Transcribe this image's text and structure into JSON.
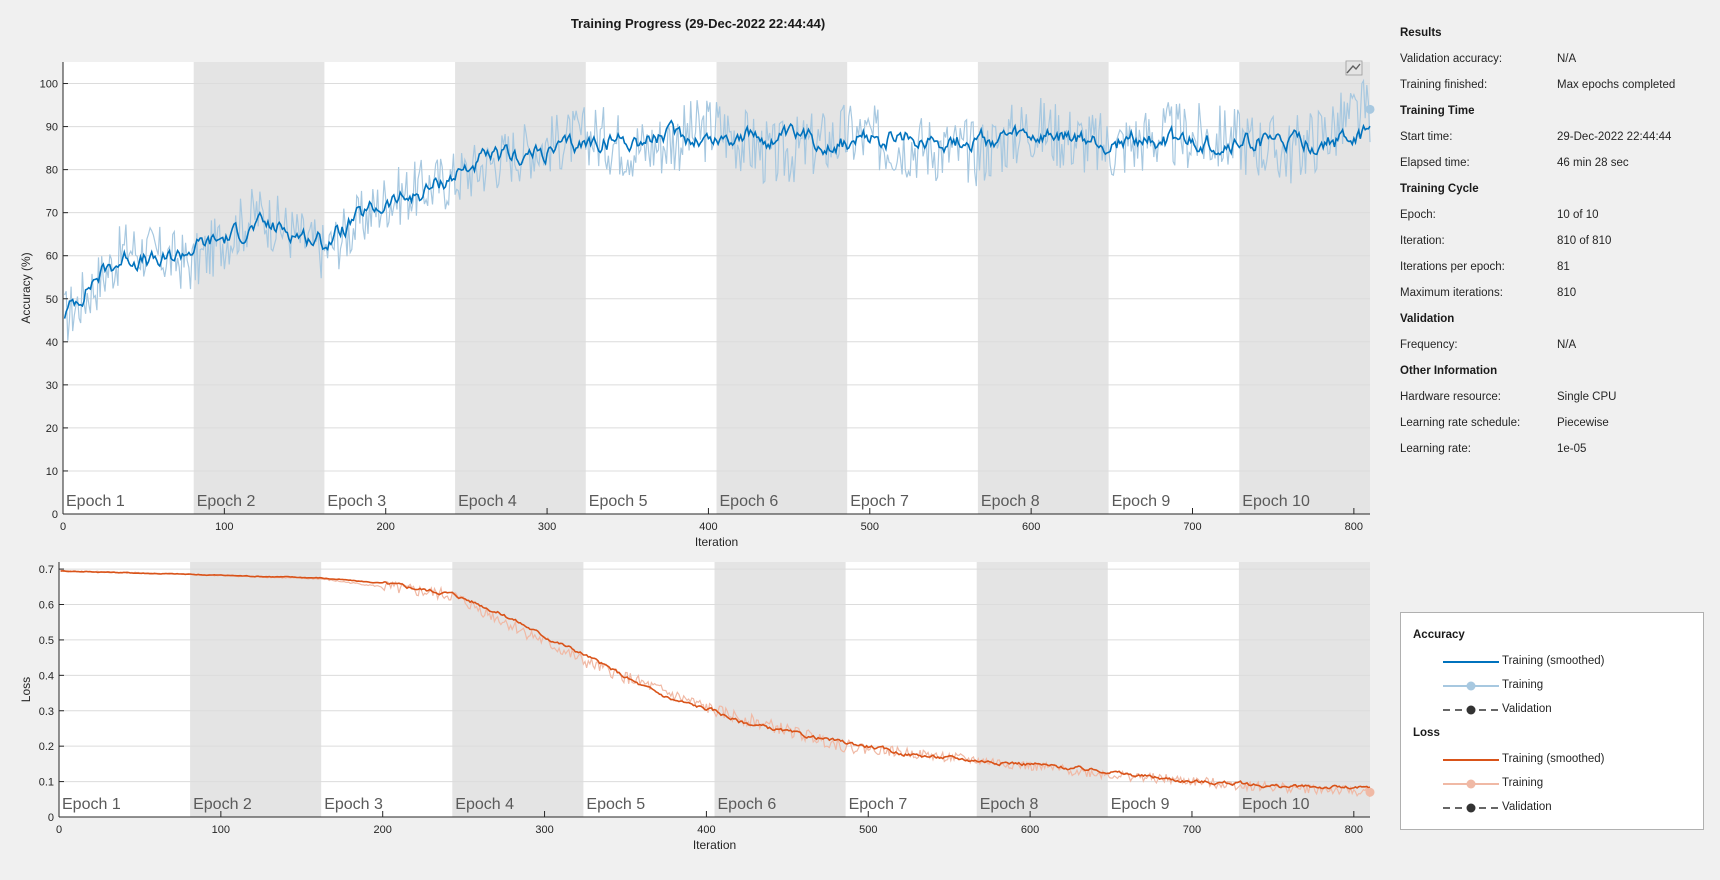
{
  "window": {
    "title": "Training Progress (29-Dec-2022 22:44:44)"
  },
  "colors": {
    "accuracy_smoothed": "#0072bd",
    "accuracy_raw": "#a7c8e0",
    "loss_smoothed": "#d95319",
    "loss_raw": "#f0b9a5",
    "epoch_band": "#e4e4e4",
    "plot_bg": "#ffffff",
    "validation": "#333333"
  },
  "epochs": [
    "Epoch 1",
    "Epoch 2",
    "Epoch 3",
    "Epoch 4",
    "Epoch 5",
    "Epoch 6",
    "Epoch 7",
    "Epoch 8",
    "Epoch 9",
    "Epoch 10"
  ],
  "icons": {
    "export": "export-plot-icon"
  },
  "info_panel": {
    "sections": [
      {
        "heading": "Results",
        "rows": [
          {
            "key": "Validation accuracy:",
            "value": "N/A"
          },
          {
            "key": "Training finished:",
            "value": "Max epochs completed"
          }
        ]
      },
      {
        "heading": "Training Time",
        "rows": [
          {
            "key": "Start time:",
            "value": "29-Dec-2022 22:44:44"
          },
          {
            "key": "Elapsed time:",
            "value": "46 min 28 sec"
          }
        ]
      },
      {
        "heading": "Training Cycle",
        "rows": [
          {
            "key": "Epoch:",
            "value": "10 of 10"
          },
          {
            "key": "Iteration:",
            "value": "810 of 810"
          },
          {
            "key": "Iterations per epoch:",
            "value": "81"
          },
          {
            "key": "Maximum iterations:",
            "value": "810"
          }
        ]
      },
      {
        "heading": "Validation",
        "rows": [
          {
            "key": "Frequency:",
            "value": "N/A"
          }
        ]
      },
      {
        "heading": "Other Information",
        "rows": [
          {
            "key": "Hardware resource:",
            "value": "Single CPU"
          },
          {
            "key": "Learning rate schedule:",
            "value": "Piecewise"
          },
          {
            "key": "Learning rate:",
            "value": "1e-05"
          }
        ]
      }
    ]
  },
  "legend": {
    "accuracy_heading": "Accuracy",
    "loss_heading": "Loss",
    "smoothed": "Training (smoothed)",
    "training": "Training",
    "validation": "Validation"
  },
  "chart_data": [
    {
      "type": "line",
      "xlabel": "Iteration",
      "ylabel": "Accuracy (%)",
      "xlim": [
        0,
        810
      ],
      "ylim": [
        0,
        105
      ],
      "xticks": [
        0,
        100,
        200,
        300,
        400,
        500,
        600,
        700,
        800
      ],
      "yticks": [
        0,
        10,
        20,
        30,
        40,
        50,
        60,
        70,
        80,
        90,
        100
      ],
      "grid": true,
      "series": [
        {
          "name": "Training (smoothed)",
          "x": [
            0,
            20,
            40,
            60,
            81,
            100,
            120,
            140,
            162,
            180,
            200,
            220,
            243,
            260,
            280,
            300,
            324,
            340,
            360,
            380,
            405,
            420,
            440,
            460,
            486,
            500,
            520,
            540,
            567,
            580,
            600,
            620,
            648,
            660,
            680,
            700,
            729,
            740,
            760,
            780,
            810
          ],
          "y": [
            46,
            55,
            60,
            58,
            62,
            64,
            67,
            66,
            63,
            68,
            72,
            74,
            79,
            82,
            83,
            84,
            86,
            87,
            87,
            88,
            87,
            88,
            87,
            87,
            86,
            87,
            87,
            87,
            87,
            87,
            87,
            87,
            86,
            87,
            87,
            86,
            86,
            87,
            86,
            86,
            88
          ]
        },
        {
          "name": "Training",
          "x": [
            0,
            40,
            81,
            120,
            162,
            200,
            243,
            280,
            324,
            360,
            405,
            440,
            486,
            520,
            567,
            600,
            648,
            680,
            729,
            760,
            810
          ],
          "y": [
            45,
            62,
            58,
            70,
            61,
            73,
            78,
            84,
            88,
            85,
            90,
            83,
            88,
            86,
            84,
            90,
            85,
            88,
            87,
            84,
            94
          ]
        }
      ]
    },
    {
      "type": "line",
      "xlabel": "Iteration",
      "ylabel": "Loss",
      "xlim": [
        0,
        810
      ],
      "ylim": [
        0,
        0.72
      ],
      "xticks": [
        0,
        100,
        200,
        300,
        400,
        500,
        600,
        700,
        800
      ],
      "yticks": [
        0,
        0.1,
        0.2,
        0.3,
        0.4,
        0.5,
        0.6,
        0.7
      ],
      "grid": true,
      "series": [
        {
          "name": "Training (smoothed)",
          "x": [
            0,
            40,
            81,
            120,
            162,
            200,
            243,
            260,
            280,
            300,
            324,
            340,
            360,
            380,
            405,
            420,
            440,
            460,
            486,
            500,
            520,
            540,
            567,
            580,
            600,
            620,
            648,
            660,
            680,
            700,
            729,
            740,
            760,
            780,
            810
          ],
          "y": [
            0.695,
            0.69,
            0.685,
            0.68,
            0.675,
            0.66,
            0.63,
            0.6,
            0.56,
            0.51,
            0.46,
            0.42,
            0.37,
            0.33,
            0.3,
            0.27,
            0.25,
            0.23,
            0.21,
            0.2,
            0.18,
            0.17,
            0.16,
            0.155,
            0.15,
            0.14,
            0.13,
            0.12,
            0.11,
            0.1,
            0.095,
            0.09,
            0.085,
            0.085,
            0.08
          ]
        },
        {
          "name": "Training",
          "x": [
            0,
            81,
            162,
            243,
            324,
            405,
            486,
            567,
            648,
            729,
            810
          ],
          "y": [
            0.695,
            0.685,
            0.672,
            0.625,
            0.44,
            0.3,
            0.2,
            0.16,
            0.12,
            0.09,
            0.07
          ]
        }
      ]
    }
  ]
}
